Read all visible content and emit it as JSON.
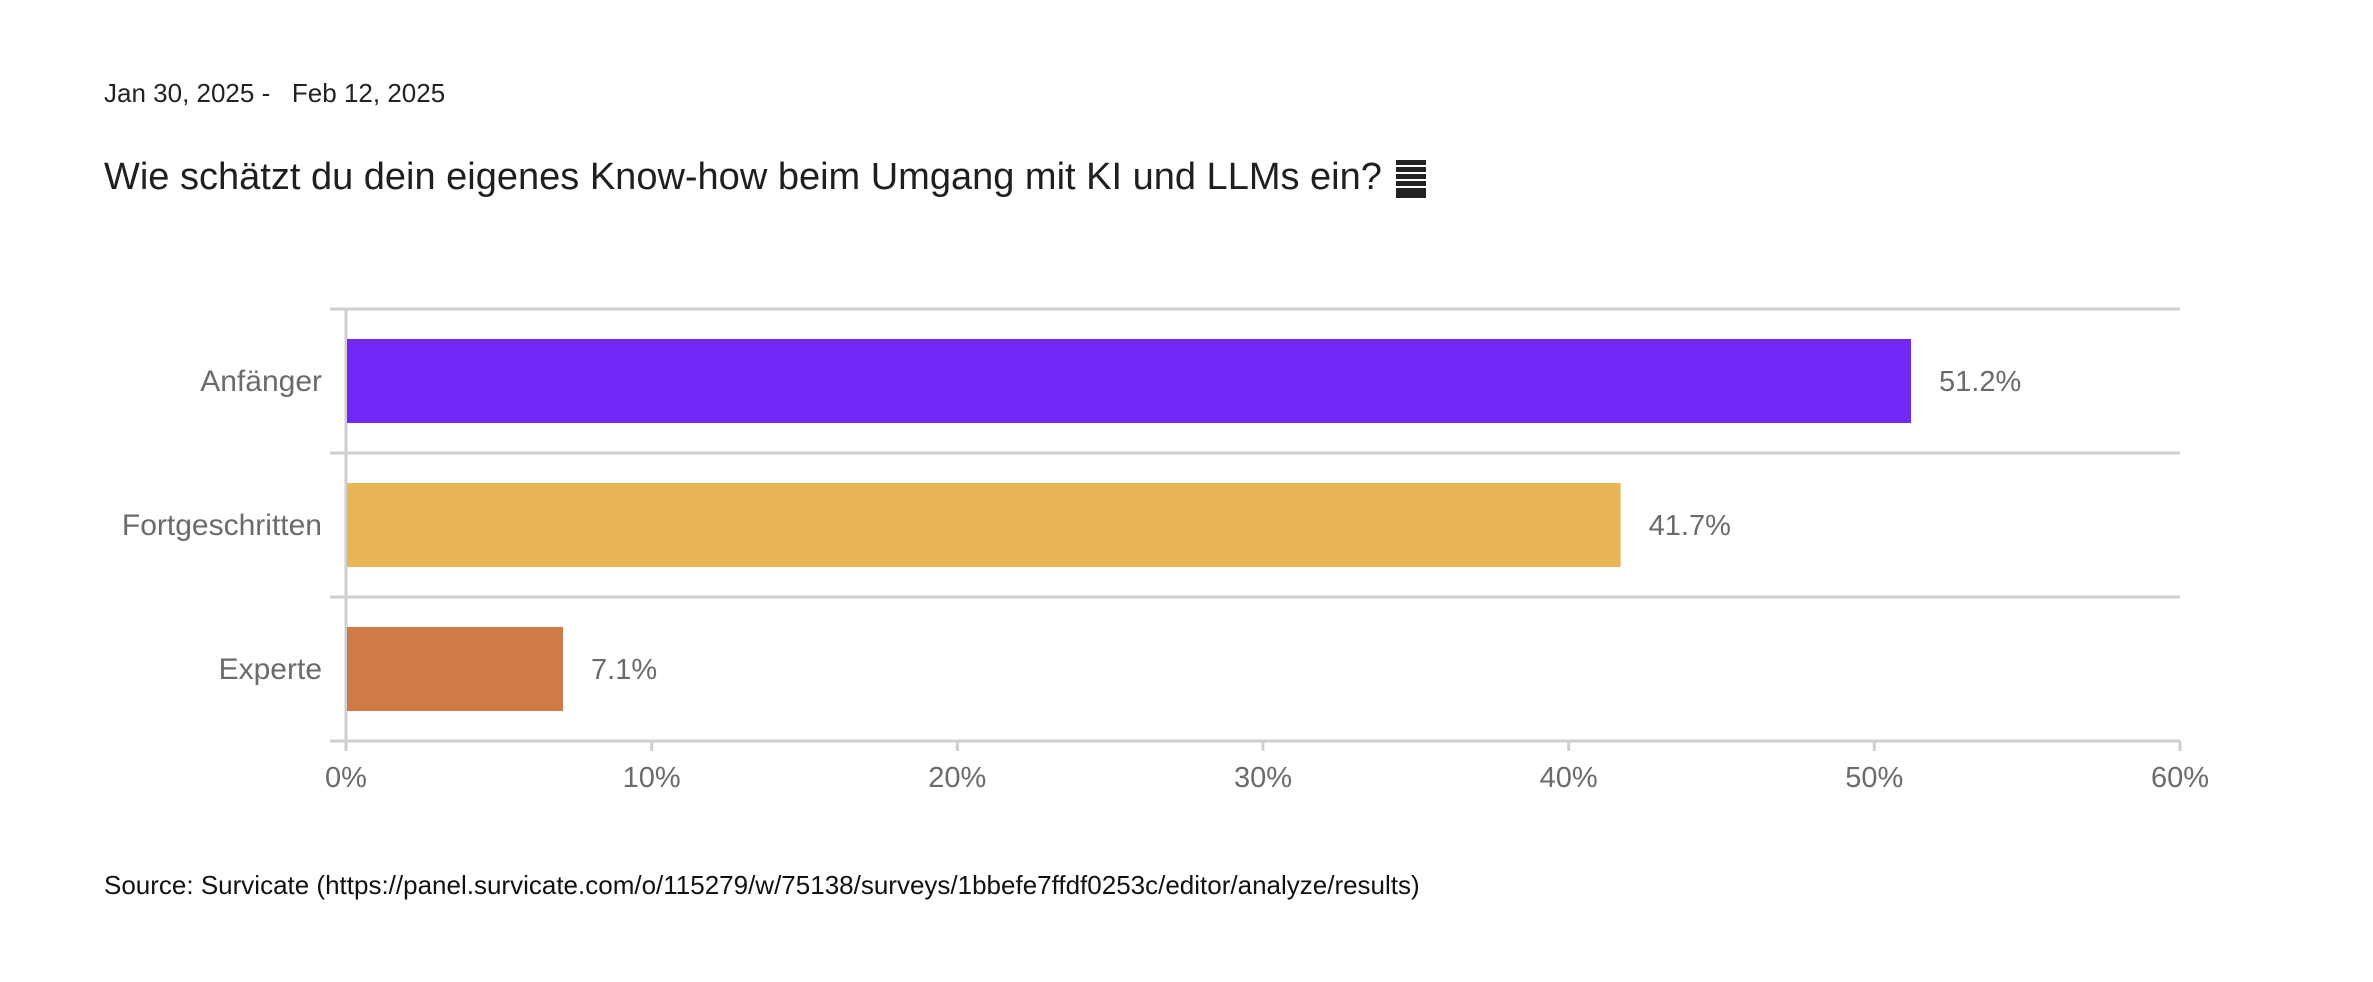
{
  "date_range": {
    "start": "Jan 30, 2025",
    "end": "Feb 12, 2025"
  },
  "title": "Wie schätzt du dein eigenes Know-how beim Umgang mit KI und LLMs ein?",
  "title_icon": "menu-lines-icon",
  "source": "Source: Survicate (https://panel.survicate.com/o/115279/w/75138/surveys/1bbefe7ffdf0253c/editor/analyze/results)",
  "colors": {
    "Anfänger": "#7228f7",
    "Fortgeschritten": "#e8b656",
    "Experte": "#d07b47",
    "grid": "#cfcfcf",
    "label": "#6b6b6b"
  },
  "chart_data": {
    "type": "bar",
    "orientation": "horizontal",
    "categories": [
      "Anfänger",
      "Fortgeschritten",
      "Experte"
    ],
    "values": [
      51.2,
      41.7,
      7.1
    ],
    "value_labels": [
      "51.2%",
      "41.7%",
      "7.1%"
    ],
    "xlim": [
      0,
      60
    ],
    "x_ticks": [
      0,
      10,
      20,
      30,
      40,
      50,
      60
    ],
    "x_tick_labels": [
      "0%",
      "10%",
      "20%",
      "30%",
      "40%",
      "50%",
      "60%"
    ],
    "title": "Wie schätzt du dein eigenes Know-how beim Umgang mit KI und LLMs ein?",
    "xlabel": "",
    "ylabel": "",
    "grid": true
  }
}
